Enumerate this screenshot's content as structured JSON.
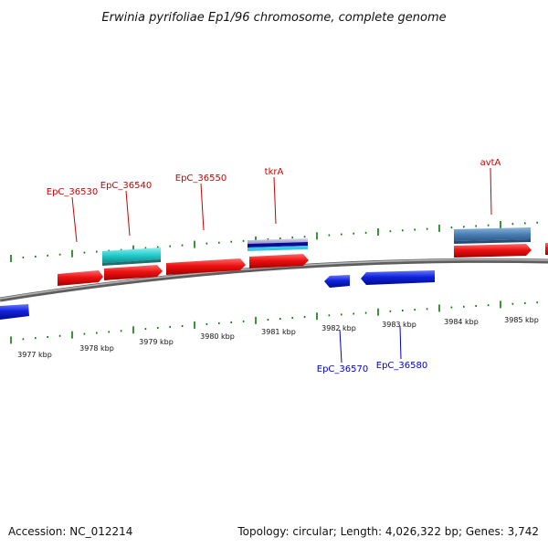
{
  "title": "Erwinia pyrifoliae Ep1/96 chromosome, complete genome",
  "footer": {
    "accession": "Accession: NC_012214",
    "summary": "Topology: circular; Length: 4,026,322 bp; Genes: 3,742"
  },
  "colors": {
    "backbone": "#808080",
    "tick": "#0a7a0a",
    "forward_gene": "#ee1111",
    "reverse_gene": "#1122dd",
    "label_red": "#cc0000",
    "label_blue": "#0000cc",
    "cyan_feature": "#22cccc",
    "steelblue_feature": "#4a7fb5",
    "lavender_feature": "#a8a8d8"
  },
  "axis_labels": [
    "3977 kbp",
    "3978 kbp",
    "3979 kbp",
    "3980 kbp",
    "3981 kbp",
    "3982 kbp",
    "3983 kbp",
    "3984 kbp",
    "3985 kbp"
  ],
  "gene_labels": [
    {
      "name": "EpC_36530",
      "strand": "forward"
    },
    {
      "name": "EpC_36540",
      "strand": "forward"
    },
    {
      "name": "EpC_36550",
      "strand": "forward"
    },
    {
      "name": "tkrA",
      "strand": "forward"
    },
    {
      "name": "avtA",
      "strand": "forward"
    },
    {
      "name": "EpC_36570",
      "strand": "reverse"
    },
    {
      "name": "EpC_36580",
      "strand": "reverse"
    }
  ]
}
